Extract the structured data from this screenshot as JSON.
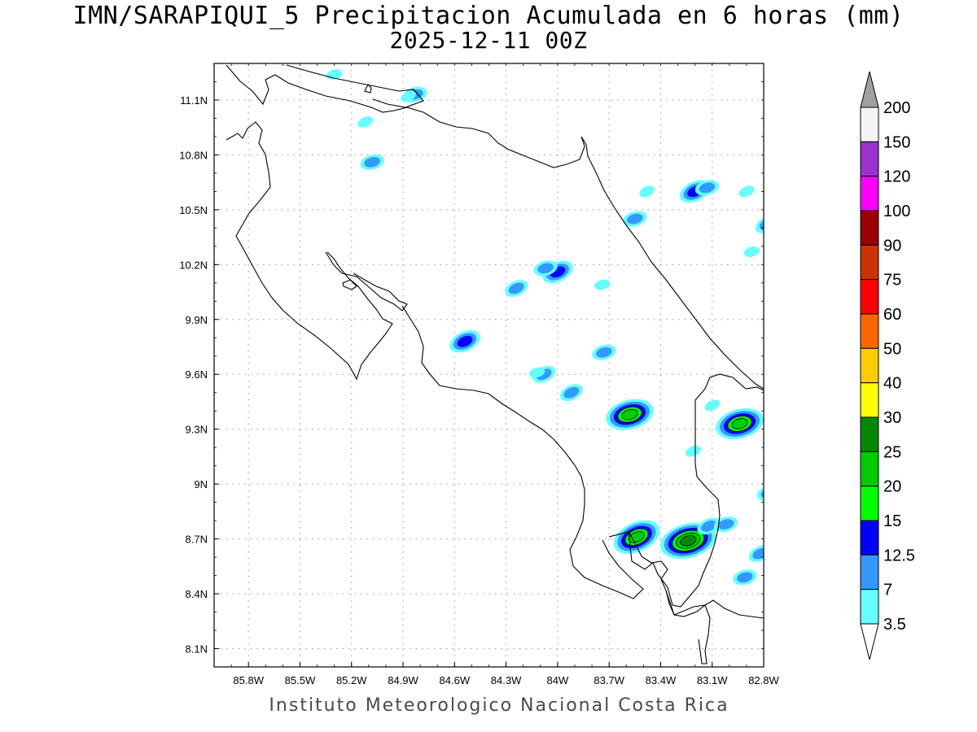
{
  "title": {
    "line1": "IMN/SARAPIQUI_5 Precipitacion Acumulada en 6 horas (mm)",
    "line2": "2025-12-11 00Z"
  },
  "credit": "Instituto Meteorologico Nacional Costa Rica",
  "map": {
    "region": "Costa Rica",
    "lon_range": [
      -86.0,
      -82.8
    ],
    "lat_range": [
      8.0,
      11.3
    ],
    "lon_ticks": [
      {
        "label": "85.8W",
        "value": -85.8
      },
      {
        "label": "85.5W",
        "value": -85.5
      },
      {
        "label": "85.2W",
        "value": -85.2
      },
      {
        "label": "84.9W",
        "value": -84.9
      },
      {
        "label": "84.6W",
        "value": -84.6
      },
      {
        "label": "84.3W",
        "value": -84.3
      },
      {
        "label": "84W",
        "value": -84.0
      },
      {
        "label": "83.7W",
        "value": -83.7
      },
      {
        "label": "83.4W",
        "value": -83.4
      },
      {
        "label": "83.1W",
        "value": -83.1
      },
      {
        "label": "82.8W",
        "value": -82.8
      }
    ],
    "lat_ticks": [
      {
        "label": "11.1N",
        "value": 11.1
      },
      {
        "label": "10.8N",
        "value": 10.8
      },
      {
        "label": "10.5N",
        "value": 10.5
      },
      {
        "label": "10.2N",
        "value": 10.2
      },
      {
        "label": "9.9N",
        "value": 9.9
      },
      {
        "label": "9.6N",
        "value": 9.6
      },
      {
        "label": "9.3N",
        "value": 9.3
      },
      {
        "label": "9N",
        "value": 9.0
      },
      {
        "label": "8.7N",
        "value": 8.7
      },
      {
        "label": "8.4N",
        "value": 8.4
      },
      {
        "label": "8.1N",
        "value": 8.1
      }
    ],
    "grid": "dotted",
    "precip_cells": [
      {
        "lon": -84.83,
        "lat": 11.13,
        "level": 2
      },
      {
        "lon": -84.87,
        "lat": 11.12,
        "level": 1
      },
      {
        "lon": -85.3,
        "lat": 11.24,
        "level": 1
      },
      {
        "lon": -85.12,
        "lat": 10.98,
        "level": 1
      },
      {
        "lon": -85.08,
        "lat": 10.76,
        "level": 2
      },
      {
        "lon": -83.2,
        "lat": 10.6,
        "level": 3
      },
      {
        "lon": -83.13,
        "lat": 10.62,
        "level": 2
      },
      {
        "lon": -83.48,
        "lat": 10.6,
        "level": 1
      },
      {
        "lon": -83.55,
        "lat": 10.45,
        "level": 2
      },
      {
        "lon": -82.9,
        "lat": 10.6,
        "level": 1
      },
      {
        "lon": -82.8,
        "lat": 10.4,
        "level": 1
      },
      {
        "lon": -82.78,
        "lat": 10.42,
        "level": 2
      },
      {
        "lon": -82.87,
        "lat": 10.27,
        "level": 1
      },
      {
        "lon": -84.0,
        "lat": 10.16,
        "level": 3
      },
      {
        "lon": -84.07,
        "lat": 10.18,
        "level": 2
      },
      {
        "lon": -84.24,
        "lat": 10.07,
        "level": 2
      },
      {
        "lon": -83.74,
        "lat": 10.09,
        "level": 1
      },
      {
        "lon": -84.54,
        "lat": 9.78,
        "level": 3
      },
      {
        "lon": -83.73,
        "lat": 9.72,
        "level": 2
      },
      {
        "lon": -84.08,
        "lat": 9.6,
        "level": 2
      },
      {
        "lon": -84.12,
        "lat": 9.61,
        "level": 1
      },
      {
        "lon": -83.92,
        "lat": 9.5,
        "level": 2
      },
      {
        "lon": -83.58,
        "lat": 9.38,
        "level": 5
      },
      {
        "lon": -83.1,
        "lat": 9.43,
        "level": 1
      },
      {
        "lon": -82.94,
        "lat": 9.33,
        "level": 5
      },
      {
        "lon": -83.21,
        "lat": 9.18,
        "level": 1
      },
      {
        "lon": -82.77,
        "lat": 8.95,
        "level": 2
      },
      {
        "lon": -83.54,
        "lat": 8.71,
        "level": 5
      },
      {
        "lon": -83.24,
        "lat": 8.69,
        "level": 6
      },
      {
        "lon": -83.12,
        "lat": 8.77,
        "level": 2
      },
      {
        "lon": -83.02,
        "lat": 8.78,
        "level": 2
      },
      {
        "lon": -82.82,
        "lat": 8.62,
        "level": 2
      },
      {
        "lon": -82.91,
        "lat": 8.49,
        "level": 2
      }
    ]
  },
  "colorbar": {
    "labels": [
      "3.5",
      "7",
      "12.5",
      "15",
      "20",
      "25",
      "30",
      "40",
      "50",
      "60",
      "75",
      "90",
      "100",
      "120",
      "150",
      "200"
    ],
    "colors": [
      "#ffffff",
      "#66ffff",
      "#3399ff",
      "#0000ff",
      "#00ff00",
      "#00cc00",
      "#008800",
      "#ffff00",
      "#ffcc00",
      "#ff6600",
      "#ff0000",
      "#cc3300",
      "#990000",
      "#ff00ff",
      "#9933cc",
      "#f4f4f4",
      "#a0a0a0"
    ]
  }
}
